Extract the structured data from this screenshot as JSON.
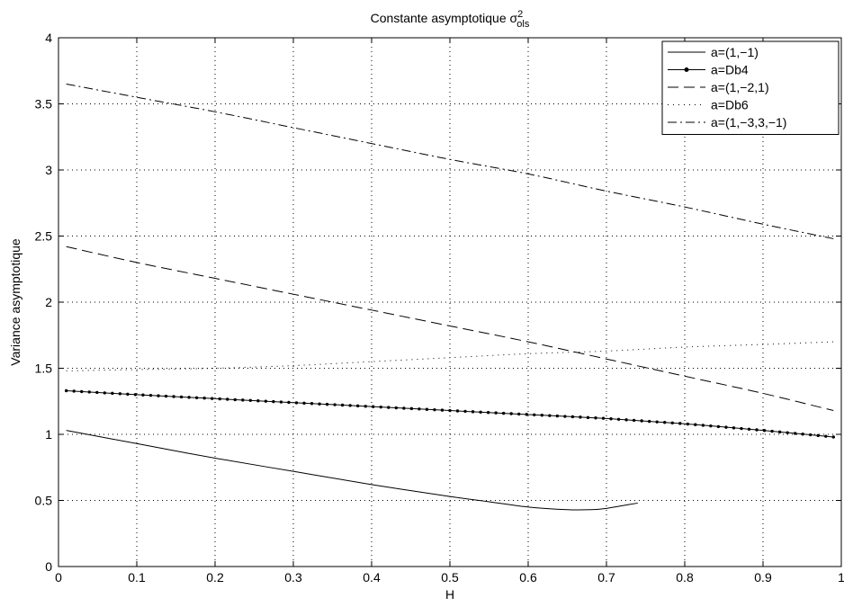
{
  "chart_data": {
    "type": "line",
    "title": "Constante asymptotique σ",
    "title_superscript": "2",
    "title_subscript": "ols",
    "xlabel": "H",
    "ylabel": "Variance asymptotique",
    "xlim": [
      0,
      1
    ],
    "ylim": [
      0,
      4
    ],
    "xticks": [
      0,
      0.1,
      0.2,
      0.3,
      0.4,
      0.5,
      0.6,
      0.7,
      0.8,
      0.9,
      1
    ],
    "xtick_labels": [
      "0",
      "0.1",
      "0.2",
      "0.3",
      "0.4",
      "0.5",
      "0.6",
      "0.7",
      "0.8",
      "0.9",
      "1"
    ],
    "yticks": [
      0,
      0.5,
      1,
      1.5,
      2,
      2.5,
      3,
      3.5,
      4
    ],
    "ytick_labels": [
      "0",
      "0.5",
      "1",
      "1.5",
      "2",
      "2.5",
      "3",
      "3.5",
      "4"
    ],
    "grid": true,
    "legend_position": "top-right",
    "series": [
      {
        "name": "a=(1,−1)",
        "style": "solid",
        "x": [
          0.01,
          0.1,
          0.2,
          0.3,
          0.4,
          0.5,
          0.55,
          0.6,
          0.65,
          0.68,
          0.7,
          0.72,
          0.74
        ],
        "y": [
          1.03,
          0.93,
          0.82,
          0.72,
          0.62,
          0.53,
          0.49,
          0.45,
          0.43,
          0.43,
          0.44,
          0.46,
          0.48
        ]
      },
      {
        "name": "a=Db4",
        "style": "solid-dots",
        "x": [
          0.01,
          0.1,
          0.2,
          0.3,
          0.4,
          0.5,
          0.6,
          0.7,
          0.8,
          0.9,
          0.99
        ],
        "y": [
          1.33,
          1.3,
          1.27,
          1.24,
          1.21,
          1.18,
          1.15,
          1.12,
          1.08,
          1.03,
          0.98
        ]
      },
      {
        "name": "a=(1,−2,1)",
        "style": "dashed",
        "x": [
          0.01,
          0.1,
          0.2,
          0.3,
          0.4,
          0.5,
          0.6,
          0.7,
          0.8,
          0.9,
          0.99
        ],
        "y": [
          2.42,
          2.3,
          2.18,
          2.06,
          1.94,
          1.82,
          1.7,
          1.57,
          1.44,
          1.31,
          1.18
        ]
      },
      {
        "name": "a=Db6",
        "style": "dotted",
        "x": [
          0.01,
          0.1,
          0.2,
          0.3,
          0.4,
          0.5,
          0.6,
          0.7,
          0.8,
          0.9,
          0.99
        ],
        "y": [
          1.48,
          1.49,
          1.5,
          1.52,
          1.55,
          1.58,
          1.61,
          1.63,
          1.66,
          1.68,
          1.7
        ]
      },
      {
        "name": "a=(1,−3,3,−1)",
        "style": "dashdot",
        "x": [
          0.01,
          0.1,
          0.2,
          0.3,
          0.4,
          0.5,
          0.6,
          0.7,
          0.8,
          0.9,
          0.99
        ],
        "y": [
          3.65,
          3.55,
          3.44,
          3.32,
          3.2,
          3.08,
          2.97,
          2.84,
          2.72,
          2.59,
          2.48
        ]
      }
    ]
  }
}
